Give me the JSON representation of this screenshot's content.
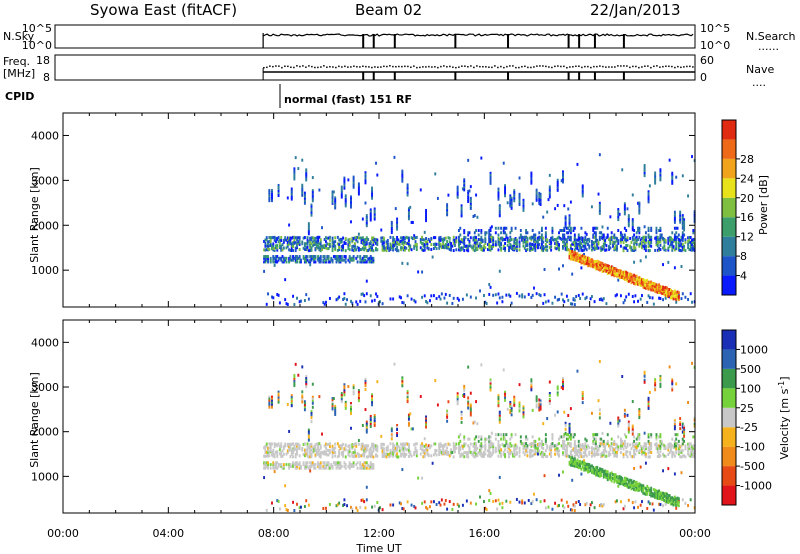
{
  "header": {
    "station": "Syowa East (fitACF)",
    "beam": "Beam 02",
    "date": "22/Jan/2013"
  },
  "noise_panel": {
    "left_label": "N.Sky",
    "left_ticks": [
      "10^5",
      "10^0"
    ],
    "right_ticks": [
      "10^5",
      "10^0"
    ],
    "right_label": "N.Search",
    "right_legend": "......"
  },
  "freq_panel": {
    "left_label_1": "Freq.",
    "left_label_2": "[MHz]",
    "left_ticks": [
      "18",
      "8"
    ],
    "right_ticks": [
      "60",
      "0"
    ],
    "right_label": "Nave",
    "right_legend": "...."
  },
  "cpid": {
    "label": "CPID",
    "text": "normal (fast) 151 RF"
  },
  "x_axis": {
    "label": "Time UT",
    "ticks": [
      "00:00",
      "04:00",
      "08:00",
      "12:00",
      "16:00",
      "20:00",
      "00:00"
    ]
  },
  "chart_data": [
    {
      "type": "heatmap",
      "title": "Power",
      "ylabel": "Slant Range [km]",
      "xlabel": "Time UT",
      "x_range_hours": [
        0,
        24
      ],
      "ylim": [
        180,
        4500
      ],
      "yticks": [
        "1000",
        "2000",
        "3000",
        "4000"
      ],
      "colorbar": {
        "label": "Power [dB]",
        "ticks": [
          "4",
          "8",
          "12",
          "16",
          "20",
          "24",
          "28"
        ],
        "colors": [
          "#0a1aff",
          "#1d55c8",
          "#2f7f9c",
          "#3c9e6a",
          "#7fbf3f",
          "#e8e21a",
          "#f2a31c",
          "#ee6a18",
          "#e02a12"
        ]
      },
      "features": [
        {
          "name": "data start",
          "start_hour": 7.6
        },
        {
          "name": "main band",
          "range_km": [
            1400,
            1700
          ],
          "hours": [
            7.6,
            24
          ]
        },
        {
          "name": "lower band",
          "range_km": [
            1150,
            1300
          ],
          "hours": [
            7.6,
            11.8
          ]
        },
        {
          "name": "descending echo",
          "range_km": [
            1300,
            350
          ],
          "hours": [
            19.2,
            23.4
          ]
        }
      ]
    },
    {
      "type": "heatmap",
      "title": "Velocity",
      "ylabel": "Slant Range [km]",
      "xlabel": "Time UT",
      "x_range_hours": [
        0,
        24
      ],
      "ylim": [
        180,
        4500
      ],
      "yticks": [
        "1000",
        "2000",
        "3000",
        "4000"
      ],
      "colorbar": {
        "label": "Velocity [m s",
        "label_exponent": "-1",
        "label_close": "]",
        "ticks": [
          "1000",
          "500",
          "100",
          "25",
          "-25",
          "-100",
          "-500",
          "-1000"
        ],
        "colors": [
          "#1a2fb6",
          "#2c63b2",
          "#3c9a4c",
          "#76d23a",
          "#c8c8c8",
          "#f5b21c",
          "#f08a1a",
          "#e84a16",
          "#e0141a"
        ]
      }
    }
  ]
}
